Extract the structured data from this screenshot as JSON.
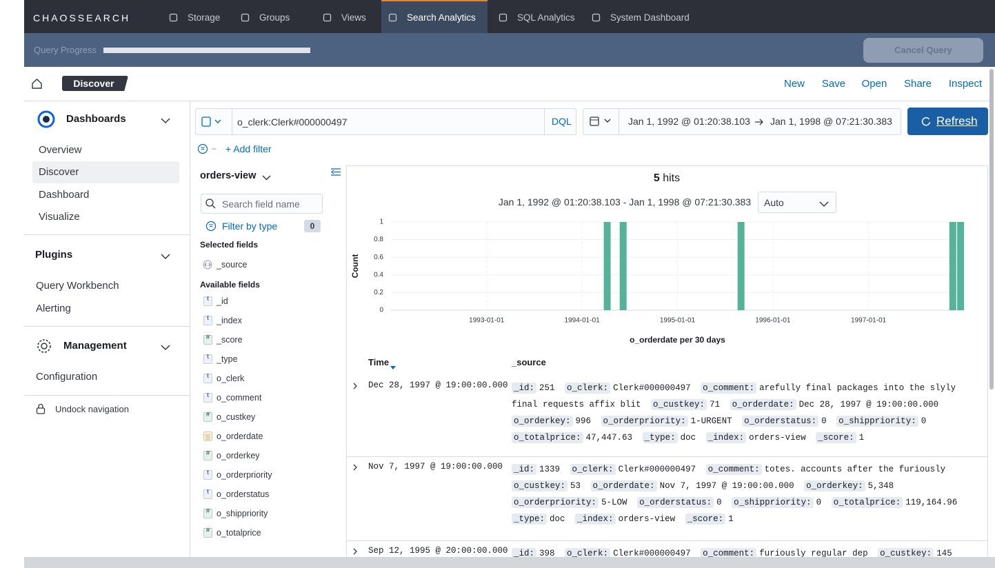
{
  "nav": {
    "brand": "CHAOSSEARCH",
    "tabs": [
      "Storage",
      "Groups",
      "Views",
      "Search Analytics",
      "SQL Analytics",
      "System Dashboard"
    ],
    "active": 3
  },
  "progress": {
    "label": "Query Progress",
    "cancel": "Cancel Query"
  },
  "header": {
    "breadcrumb": "Discover",
    "actions": [
      "New",
      "Save",
      "Open",
      "Share",
      "Inspect"
    ]
  },
  "sidebar": {
    "sections": [
      {
        "title": "Dashboards",
        "items": [
          "Overview",
          "Discover",
          "Dashboard",
          "Visualize"
        ]
      },
      {
        "title": "Plugins",
        "items": [
          "Query Workbench",
          "Alerting"
        ]
      },
      {
        "title": "Management",
        "items": [
          "Configuration"
        ]
      }
    ],
    "selected": "Discover",
    "undock": "Undock navigation"
  },
  "query": {
    "text": "o_clerk:Clerk#000000497",
    "language": "DQL",
    "start": "Jan 1, 1992 @ 01:20:38.103",
    "end": "Jan 1, 1998 @ 07:21:30.383",
    "refresh": "Refresh",
    "add_filter": "+ Add filter"
  },
  "fields": {
    "index": "orders-view",
    "search_placeholder": "Search field name",
    "filter_by_type": "Filter by type",
    "filter_count": "0",
    "selected_title": "Selected fields",
    "selected": [
      "_source"
    ],
    "available_title": "Available fields",
    "available": [
      {
        "type": "t",
        "name": "_id"
      },
      {
        "type": "t",
        "name": "_index"
      },
      {
        "type": "#",
        "name": "_score"
      },
      {
        "type": "t",
        "name": "_type"
      },
      {
        "type": "t",
        "name": "o_clerk"
      },
      {
        "type": "t",
        "name": "o_comment"
      },
      {
        "type": "#",
        "name": "o_custkey"
      },
      {
        "name": "o_orderdate"
      },
      {
        "type": "#",
        "name": "o_orderkey"
      },
      {
        "type": "t",
        "name": "o_orderpriority"
      },
      {
        "type": "t",
        "name": "o_orderstatus"
      },
      {
        "type": "#",
        "name": "o_shippriority"
      },
      {
        "type": "#",
        "name": "o_totalprice"
      }
    ]
  },
  "discover": {
    "hits": "5",
    "hits_label": "hits",
    "range": "Jan 1, 1992 @ 01:20:38.103 - Jan 1, 1998 @ 07:21:30.383",
    "interval": "Auto"
  },
  "chart_data": {
    "type": "bar",
    "ylabel": "Count",
    "xlabel": "o_orderdate per 30 days",
    "x": [
      "1994-03-25",
      "1994-05-25",
      "1995-08-19",
      "1997-11-06",
      "1997-12-06"
    ],
    "values": [
      1,
      1,
      1,
      1,
      1
    ],
    "color": "#54b399",
    "xlim": [
      "1992-01-01",
      "1998-01-01"
    ],
    "xticks": [
      "1993-01-01",
      "1994-01-01",
      "1995-01-01",
      "1996-01-01",
      "1997-01-01"
    ],
    "ylim": [
      0,
      1
    ],
    "yticks": [
      0,
      0.2,
      0.4,
      0.6,
      0.8,
      1
    ],
    "grid": true
  },
  "table": {
    "headers": [
      "Time",
      "_source"
    ],
    "rows": [
      {
        "time": "Dec 28, 1997 @ 19:00:00.000",
        "source": [
          [
            "_id:",
            "251"
          ],
          [
            "o_clerk:",
            "Clerk#000000497"
          ],
          [
            "o_comment:",
            "arefully final packages into the slyly final requests affix blit"
          ],
          [
            "o_custkey:",
            "71"
          ],
          [
            "o_orderdate:",
            "Dec 28, 1997 @ 19:00:00.000"
          ],
          [
            "o_orderkey:",
            "996"
          ],
          [
            "o_orderpriority:",
            "1-URGENT"
          ],
          [
            "o_orderstatus:",
            "0"
          ],
          [
            "o_shippriority:",
            "0"
          ],
          [
            "o_totalprice:",
            "47,447.63"
          ],
          [
            "_type:",
            "doc"
          ],
          [
            "_index:",
            "orders-view"
          ],
          [
            "_score:",
            "1"
          ]
        ]
      },
      {
        "time": "Nov 7, 1997 @ 19:00:00.000",
        "source": [
          [
            "_id:",
            "1339"
          ],
          [
            "o_clerk:",
            "Clerk#000000497"
          ],
          [
            "o_comment:",
            "totes. accounts after the furiously"
          ],
          [
            "o_custkey:",
            "53"
          ],
          [
            "o_orderdate:",
            "Nov 7, 1997 @ 19:00:00.000"
          ],
          [
            "o_orderkey:",
            "5,348"
          ],
          [
            "o_orderpriority:",
            "5-LOW"
          ],
          [
            "o_orderstatus:",
            "0"
          ],
          [
            "o_shippriority:",
            "0"
          ],
          [
            "o_totalprice:",
            "119,164.96"
          ],
          [
            "_type:",
            "doc"
          ],
          [
            "_index:",
            "orders-view"
          ],
          [
            "_score:",
            "1"
          ]
        ]
      },
      {
        "time": "Sep 12, 1995 @ 20:00:00.000",
        "source": [
          [
            "_id:",
            "398"
          ],
          [
            "o_clerk:",
            "Clerk#000000497"
          ],
          [
            "o_comment:",
            "furiously regular dep"
          ],
          [
            "o_custkey:",
            "145"
          ]
        ]
      }
    ]
  }
}
